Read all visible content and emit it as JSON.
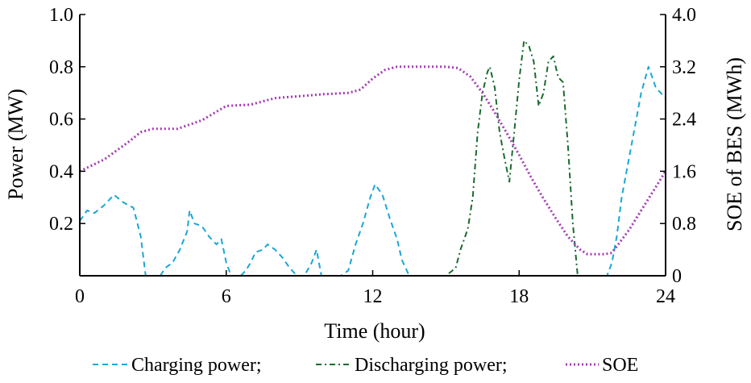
{
  "chart_data": {
    "type": "line",
    "xlabel": "Time (hour)",
    "ylabel_left": "Power (MW)",
    "ylabel_right": "SOE of BES (MWh)",
    "xlim": [
      0,
      24
    ],
    "ylim_left": [
      0,
      1.0
    ],
    "ylim_right": [
      0,
      4.0
    ],
    "x_ticks": [
      0,
      6,
      12,
      18,
      24
    ],
    "y_ticks_left": [
      {
        "value": 1.0,
        "label": "1.0"
      },
      {
        "value": 0.8,
        "label": "0.8"
      },
      {
        "value": 0.6,
        "label": "0.6"
      },
      {
        "value": 0.4,
        "label": "0.4"
      },
      {
        "value": 0.2,
        "label": "0.2"
      }
    ],
    "y_ticks_right": [
      {
        "value": 4.0,
        "label": "4.0"
      },
      {
        "value": 3.2,
        "label": "3.2"
      },
      {
        "value": 2.4,
        "label": "2.4"
      },
      {
        "value": 1.6,
        "label": "1.6"
      },
      {
        "value": 0.8,
        "label": "0.8"
      },
      {
        "value": 0,
        "label": "0"
      }
    ],
    "grid": false,
    "legend_position": "bottom",
    "series": [
      {
        "name": "Charging power;",
        "axis": "left",
        "color": "#1aa7d6",
        "dash": "dash",
        "x": [
          0,
          0.3,
          0.6,
          1.0,
          1.4,
          1.8,
          2.2,
          2.5,
          2.7,
          3.0,
          3.3,
          3.5,
          3.8,
          4.1,
          4.4,
          4.5,
          4.7,
          5.0,
          5.3,
          5.6,
          5.8,
          6.0,
          6.2,
          6.4,
          6.6,
          6.8,
          7.0,
          7.2,
          7.5,
          7.7,
          8.0,
          8.3,
          8.6,
          8.9,
          9.2,
          9.5,
          9.7,
          9.9,
          10.1,
          10.4,
          10.7,
          11.0,
          11.3,
          11.6,
          11.9,
          12.1,
          12.4,
          12.7,
          13.0,
          13.2,
          13.5,
          14.0,
          15.0,
          16.0,
          17.0,
          18.0,
          19.0,
          20.0,
          21.0,
          21.6,
          21.8,
          22.0,
          22.2,
          22.5,
          22.8,
          23.0,
          23.3,
          23.6,
          24.0
        ],
        "values": [
          0.21,
          0.25,
          0.24,
          0.27,
          0.31,
          0.28,
          0.26,
          0.15,
          0.0,
          0.0,
          0.0,
          0.03,
          0.05,
          0.1,
          0.17,
          0.25,
          0.2,
          0.19,
          0.15,
          0.12,
          0.14,
          0.05,
          0.0,
          0.0,
          0.0,
          0.02,
          0.05,
          0.09,
          0.1,
          0.12,
          0.1,
          0.07,
          0.03,
          0.0,
          0.0,
          0.05,
          0.1,
          0.0,
          0.0,
          0.0,
          0.0,
          0.02,
          0.12,
          0.2,
          0.3,
          0.35,
          0.31,
          0.22,
          0.14,
          0.06,
          0.0,
          0.0,
          0.0,
          0.0,
          0.0,
          0.0,
          0.0,
          0.0,
          0.0,
          0.0,
          0.05,
          0.15,
          0.3,
          0.45,
          0.6,
          0.7,
          0.8,
          0.72,
          0.68
        ]
      },
      {
        "name": "Discharging power;",
        "axis": "left",
        "color": "#1a6b2e",
        "dash": "dashdot",
        "x": [
          0,
          15.0,
          15.4,
          15.6,
          15.9,
          16.1,
          16.3,
          16.5,
          16.7,
          16.8,
          17.0,
          17.2,
          17.4,
          17.6,
          17.8,
          18.0,
          18.2,
          18.4,
          18.6,
          18.8,
          19.0,
          19.2,
          19.4,
          19.6,
          19.8,
          20.0,
          20.2,
          20.4,
          24.0
        ],
        "values": [
          0,
          0,
          0.03,
          0.1,
          0.18,
          0.3,
          0.55,
          0.7,
          0.78,
          0.8,
          0.72,
          0.55,
          0.45,
          0.36,
          0.55,
          0.75,
          0.9,
          0.88,
          0.82,
          0.65,
          0.7,
          0.82,
          0.84,
          0.76,
          0.74,
          0.5,
          0.2,
          0.0,
          0
        ]
      },
      {
        "name": "SOE",
        "axis": "right",
        "color": "#a43ab4",
        "dash": "dot",
        "x": [
          0,
          1.0,
          2.0,
          2.5,
          3.0,
          4.0,
          5.0,
          6.0,
          7.0,
          8.0,
          9.0,
          10.0,
          11.0,
          11.5,
          12.0,
          12.5,
          13.0,
          14.0,
          15.0,
          15.5,
          16.0,
          16.5,
          17.0,
          17.5,
          18.0,
          18.5,
          19.0,
          19.5,
          20.0,
          20.5,
          20.8,
          21.0,
          21.5,
          21.8,
          22.0,
          22.5,
          23.0,
          23.5,
          24.0
        ],
        "values": [
          1.6,
          1.78,
          2.05,
          2.2,
          2.25,
          2.25,
          2.38,
          2.6,
          2.62,
          2.72,
          2.75,
          2.78,
          2.8,
          2.85,
          3.02,
          3.15,
          3.2,
          3.2,
          3.2,
          3.18,
          3.05,
          2.8,
          2.5,
          2.18,
          1.85,
          1.5,
          1.18,
          0.88,
          0.6,
          0.4,
          0.33,
          0.33,
          0.33,
          0.35,
          0.45,
          0.7,
          1.0,
          1.3,
          1.6
        ]
      }
    ]
  }
}
